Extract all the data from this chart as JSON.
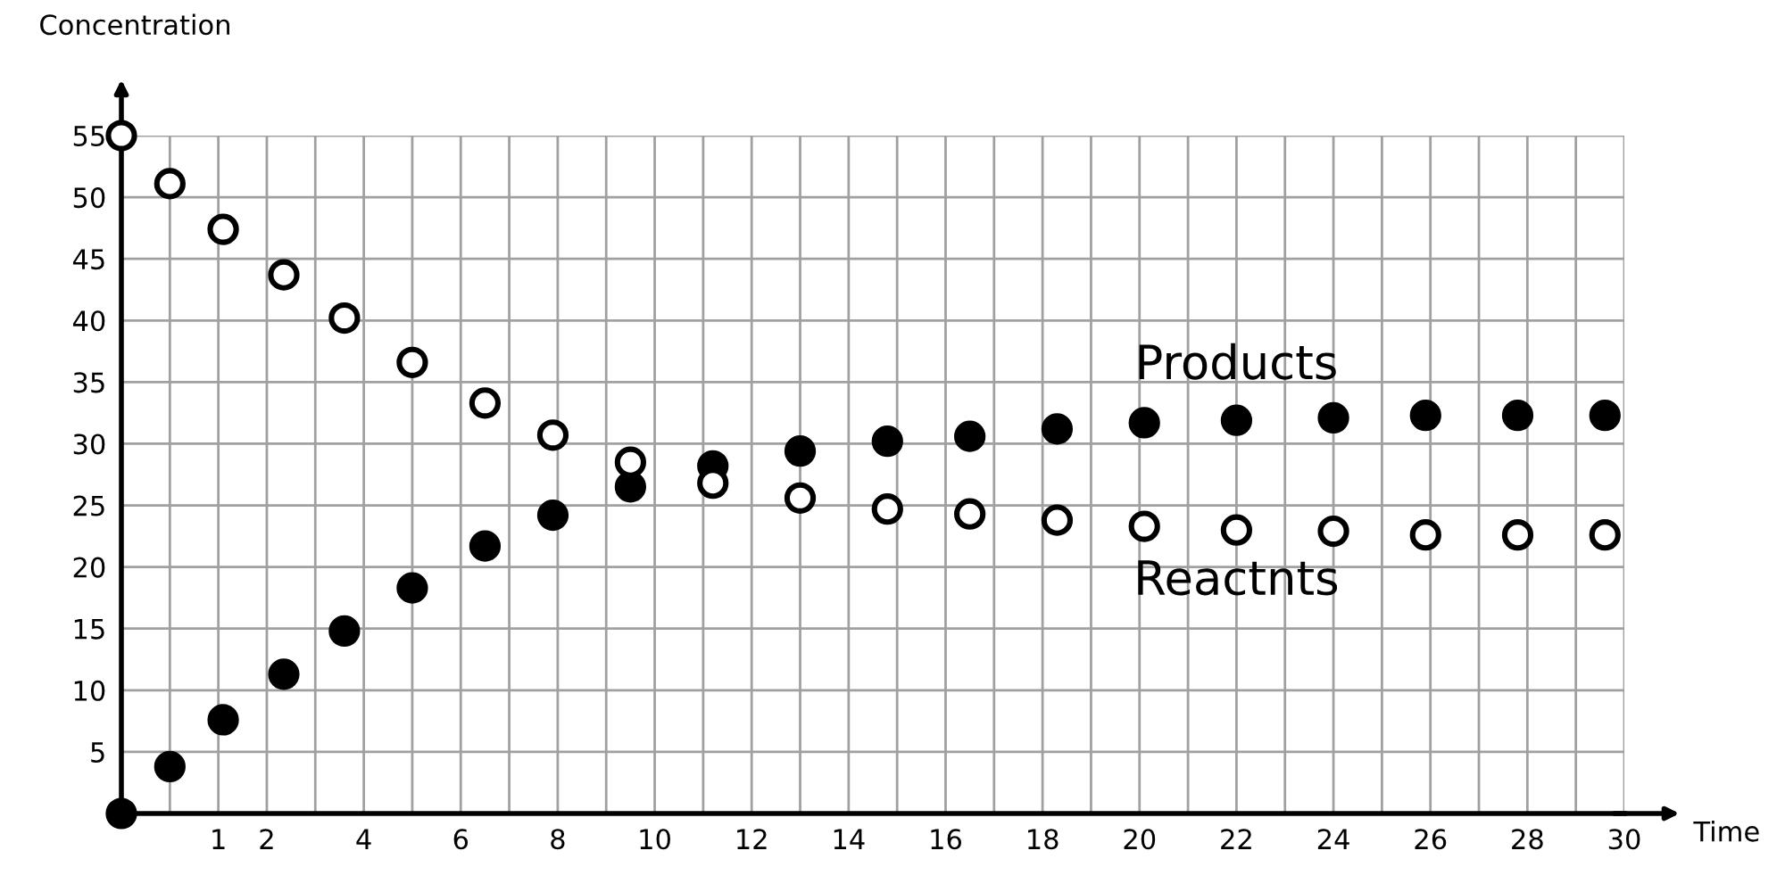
{
  "chart_data": {
    "type": "scatter",
    "xlabel": "Time",
    "ylabel": "Concentration",
    "xlim": [
      -1,
      30
    ],
    "ylim": [
      0,
      55
    ],
    "xticks": [
      {
        "value": -1,
        "label": null
      },
      {
        "value": 0,
        "label": null
      },
      1,
      2,
      {
        "value": 3,
        "label": null
      },
      4,
      {
        "value": 5,
        "label": null
      },
      6,
      {
        "value": 7,
        "label": null
      },
      8,
      {
        "value": 9,
        "label": null
      },
      10,
      {
        "value": 11,
        "label": null
      },
      12,
      {
        "value": 13,
        "label": null
      },
      14,
      {
        "value": 15,
        "label": null
      },
      16,
      {
        "value": 17,
        "label": null
      },
      18,
      {
        "value": 19,
        "label": null
      },
      20,
      {
        "value": 21,
        "label": null
      },
      22,
      {
        "value": 23,
        "label": null
      },
      24,
      {
        "value": 25,
        "label": null
      },
      26,
      {
        "value": 27,
        "label": null
      },
      28,
      {
        "value": 29,
        "label": null
      },
      30
    ],
    "yticks": [
      {
        "value": 0,
        "label": null
      },
      5,
      10,
      15,
      20,
      25,
      30,
      35,
      40,
      45,
      50,
      55
    ],
    "grid": true,
    "marker": "circle",
    "series": [
      {
        "name": "Products",
        "color": "#000000",
        "x": [
          -1,
          0,
          1.1,
          2.35,
          3.6,
          5,
          6.5,
          7.9,
          9.5,
          11.2,
          13,
          14.8,
          16.5,
          18.3,
          20.1,
          22,
          24,
          25.9,
          27.8,
          29.6
        ],
        "values": [
          0,
          3.8,
          7.6,
          11.3,
          14.8,
          18.3,
          21.7,
          24.2,
          26.5,
          28.2,
          29.4,
          30.2,
          30.6,
          31.2,
          31.7,
          31.9,
          32.1,
          32.3,
          32.3,
          32.3
        ]
      },
      {
        "name": "Reactnts",
        "color": "#ffffff",
        "x": [
          -1,
          0,
          1.1,
          2.35,
          3.6,
          5,
          6.5,
          7.9,
          9.5,
          11.2,
          13,
          14.8,
          16.5,
          18.3,
          20.1,
          22,
          24,
          25.9,
          27.8,
          29.6
        ],
        "values": [
          55,
          51.1,
          47.4,
          43.7,
          40.2,
          36.6,
          33.3,
          30.7,
          28.5,
          26.8,
          25.6,
          24.7,
          24.3,
          23.8,
          23.3,
          23.0,
          22.9,
          22.6,
          22.6,
          22.6
        ]
      }
    ]
  }
}
